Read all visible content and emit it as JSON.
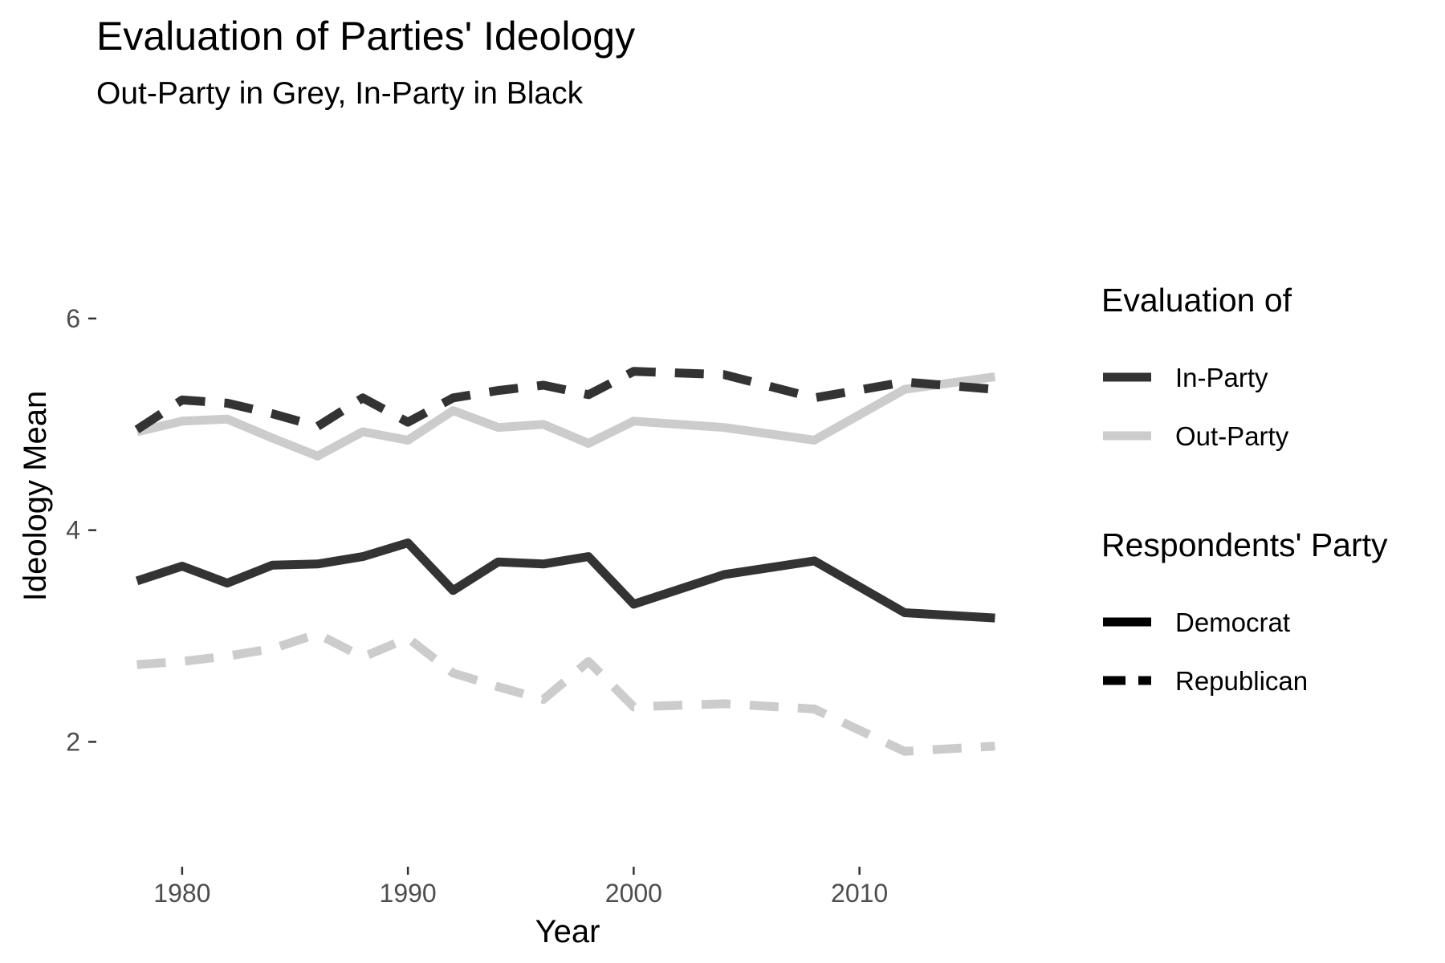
{
  "chart_data": {
    "type": "line",
    "title": "Evaluation of Parties' Ideology",
    "subtitle": "Out-Party in Grey, In-Party in Black",
    "xlabel": "Year",
    "ylabel": "Ideology Mean",
    "xlim": [
      1976.2,
      2017.8
    ],
    "ylim": [
      0.82,
      7.0
    ],
    "x_ticks": [
      1980,
      1990,
      2000,
      2010
    ],
    "y_ticks": [
      2,
      4,
      6
    ],
    "grid": false,
    "legend_position": "right",
    "colors": {
      "in_party": "#333333",
      "out_party": "#cccccc"
    },
    "legends": [
      {
        "title": "Evaluation of",
        "entries": [
          {
            "label": "In-Party",
            "color": "#333333",
            "dash": "solid"
          },
          {
            "label": "Out-Party",
            "color": "#cccccc",
            "dash": "solid"
          }
        ]
      },
      {
        "title": "Respondents' Party",
        "entries": [
          {
            "label": "Democrat",
            "color": "#000000",
            "dash": "solid"
          },
          {
            "label": "Republican",
            "color": "#000000",
            "dash": "dashed"
          }
        ]
      }
    ],
    "series": [
      {
        "evaluation": "In-Party",
        "respondents": "Democrat",
        "color": "#333333",
        "dash": "solid",
        "x": [
          1978,
          1980,
          1982,
          1984,
          1986,
          1988,
          1990,
          1992,
          1994,
          1996,
          1998,
          2000,
          2004,
          2008,
          2012,
          2016
        ],
        "y": [
          3.52,
          3.66,
          3.5,
          3.67,
          3.68,
          3.75,
          3.88,
          3.43,
          3.7,
          3.68,
          3.75,
          3.3,
          3.58,
          3.71,
          3.22,
          3.17
        ]
      },
      {
        "evaluation": "Out-Party",
        "respondents": "Democrat",
        "color": "#cccccc",
        "dash": "solid",
        "x": [
          1978,
          1980,
          1982,
          1984,
          1986,
          1988,
          1990,
          1992,
          1994,
          1996,
          1998,
          2000,
          2004,
          2008,
          2012,
          2016
        ],
        "y": [
          4.93,
          5.03,
          5.05,
          4.87,
          4.7,
          4.93,
          4.85,
          5.13,
          4.97,
          5.0,
          4.82,
          5.03,
          4.97,
          4.85,
          5.33,
          5.45
        ]
      },
      {
        "evaluation": "In-Party",
        "respondents": "Republican",
        "color": "#333333",
        "dash": "dashed",
        "x": [
          1978,
          1980,
          1982,
          1984,
          1986,
          1988,
          1990,
          1992,
          1994,
          1996,
          1998,
          2000,
          2004,
          2008,
          2012,
          2016
        ],
        "y": [
          4.95,
          5.23,
          5.2,
          5.1,
          4.98,
          5.25,
          5.02,
          5.25,
          5.32,
          5.37,
          5.28,
          5.5,
          5.47,
          5.25,
          5.4,
          5.33
        ]
      },
      {
        "evaluation": "Out-Party",
        "respondents": "Republican",
        "color": "#cccccc",
        "dash": "dashed",
        "x": [
          1978,
          1980,
          1982,
          1984,
          1986,
          1988,
          1990,
          1992,
          1994,
          1996,
          1998,
          2000,
          2004,
          2008,
          2012,
          2016
        ],
        "y": [
          2.73,
          2.76,
          2.81,
          2.88,
          3.02,
          2.8,
          2.98,
          2.65,
          2.52,
          2.4,
          2.76,
          2.33,
          2.36,
          2.31,
          1.91,
          1.96
        ]
      }
    ]
  }
}
